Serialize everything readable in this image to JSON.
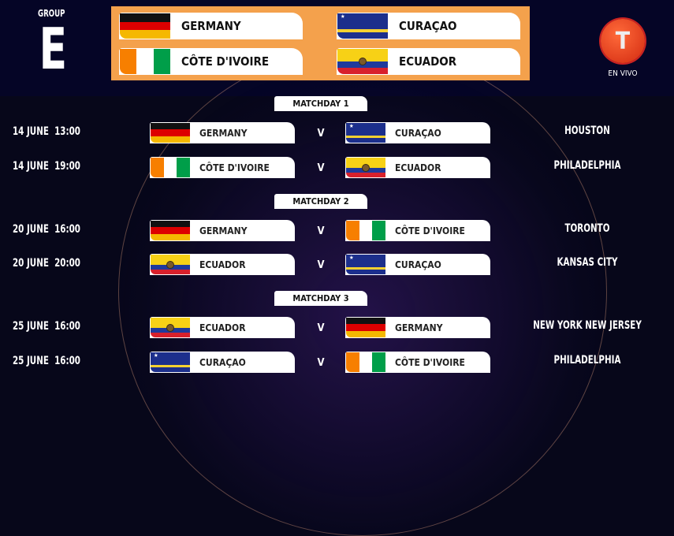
{
  "header": {
    "group_label": "GROUP",
    "group_letter": "E",
    "teams": [
      "GERMANY",
      "CURAÇAO",
      "CÔTE D'IVOIRE",
      "ECUADOR"
    ],
    "logo_text": "EN VIVO",
    "accent": "#f4a14c"
  },
  "matchdays": [
    {
      "label": "MATCHDAY 1",
      "matches": [
        {
          "date": "14 JUNE  13:00",
          "home": "GERMANY",
          "away": "CURAÇAO",
          "sep": "V",
          "venue": "HOUSTON"
        },
        {
          "date": "14 JUNE  19:00",
          "home": "CÔTE D'IVOIRE",
          "away": "ECUADOR",
          "sep": "V",
          "venue": "PHILADELPHIA"
        }
      ]
    },
    {
      "label": "MATCHDAY 2",
      "matches": [
        {
          "date": "20 JUNE  16:00",
          "home": "GERMANY",
          "away": "CÔTE D'IVOIRE",
          "sep": "V",
          "venue": "TORONTO"
        },
        {
          "date": "20 JUNE  20:00",
          "home": "ECUADOR",
          "away": "CURAÇAO",
          "sep": "V",
          "venue": "KANSAS CITY"
        }
      ]
    },
    {
      "label": "MATCHDAY 3",
      "matches": [
        {
          "date": "25 JUNE  16:00",
          "home": "ECUADOR",
          "away": "GERMANY",
          "sep": "V",
          "venue": "NEW YORK NEW JERSEY"
        },
        {
          "date": "25 JUNE  16:00",
          "home": "CURAÇAO",
          "away": "CÔTE D'IVOIRE",
          "sep": "V",
          "venue": "PHILADELPHIA"
        }
      ]
    }
  ]
}
